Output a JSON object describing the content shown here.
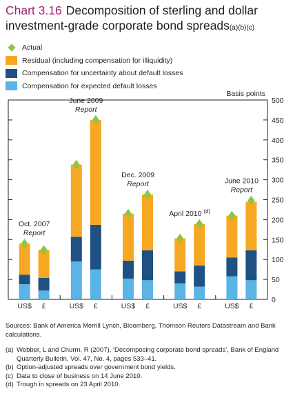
{
  "title": {
    "chart_number": "Chart 3.16",
    "text": "Decomposition of sterling and dollar investment-grade corporate bond spreads",
    "note_marks": "(a)(b)(c)"
  },
  "legend": [
    {
      "label": "Actual",
      "color": "#8dc63f",
      "kind": "diamond"
    },
    {
      "label": "Residual (including compensation for illiquidity)",
      "color": "#f7a823",
      "kind": "box"
    },
    {
      "label": "Compensation for uncertainty about default losses",
      "color": "#1f5283",
      "kind": "box"
    },
    {
      "label": "Compensation for expected default losses",
      "color": "#5ab4e5",
      "kind": "box"
    }
  ],
  "chart_data": {
    "type": "bar",
    "stacked": true,
    "unit_label": "Basis points",
    "ylim": [
      0,
      500
    ],
    "yticks": [
      0,
      50,
      100,
      150,
      200,
      250,
      300,
      350,
      400,
      450,
      500
    ],
    "categories": [
      "US$",
      "£",
      "US$",
      "£",
      "US$",
      "£",
      "US$",
      "£",
      "US$",
      "£"
    ],
    "groups": [
      {
        "label": "Oct. 2007",
        "label_italic": "Report",
        "superscript": ""
      },
      {
        "label": "June 2009",
        "label_italic": "Report",
        "superscript": ""
      },
      {
        "label": "Dec. 2009",
        "label_italic": "Report",
        "superscript": ""
      },
      {
        "label": "April 2010",
        "label_italic": "",
        "superscript": "(d)"
      },
      {
        "label": "June 2010",
        "label_italic": "Report",
        "superscript": ""
      }
    ],
    "series": [
      {
        "name": "Compensation for expected default losses",
        "color": "#5ab4e5",
        "values": [
          38,
          22,
          95,
          75,
          52,
          48,
          40,
          32,
          58,
          48
        ]
      },
      {
        "name": "Compensation for uncertainty about default losses",
        "color": "#1f5283",
        "values": [
          24,
          32,
          62,
          112,
          45,
          75,
          30,
          53,
          47,
          75
        ]
      },
      {
        "name": "Residual (including compensation for illiquidity)",
        "color": "#f7a823",
        "values": [
          78,
          70,
          181,
          263,
          118,
          140,
          83,
          104,
          105,
          122
        ]
      }
    ],
    "actual": {
      "name": "Actual",
      "color": "#8dc63f",
      "values": [
        140,
        124,
        338,
        450,
        215,
        263,
        153,
        189,
        210,
        248
      ]
    }
  },
  "footnotes": {
    "sources": "Sources: Bank of America Merrill Lynch, Bloomberg, Thomson Reuters Datastream and Bank calculations.",
    "notes": [
      {
        "label": "(a)",
        "text": "Webber, L and Churm, R (2007), ‘Decomposing corporate bond spreads’, Bank of England Quarterly Bulletin, Vol. 47, No. 4, pages 533–41."
      },
      {
        "label": "(b)",
        "text": "Option-adjusted spreads over government bond yields."
      },
      {
        "label": "(c)",
        "text": "Data to close of business on 14 June 2010."
      },
      {
        "label": "(d)",
        "text": "Trough in spreads on 23 April 2010."
      }
    ]
  }
}
